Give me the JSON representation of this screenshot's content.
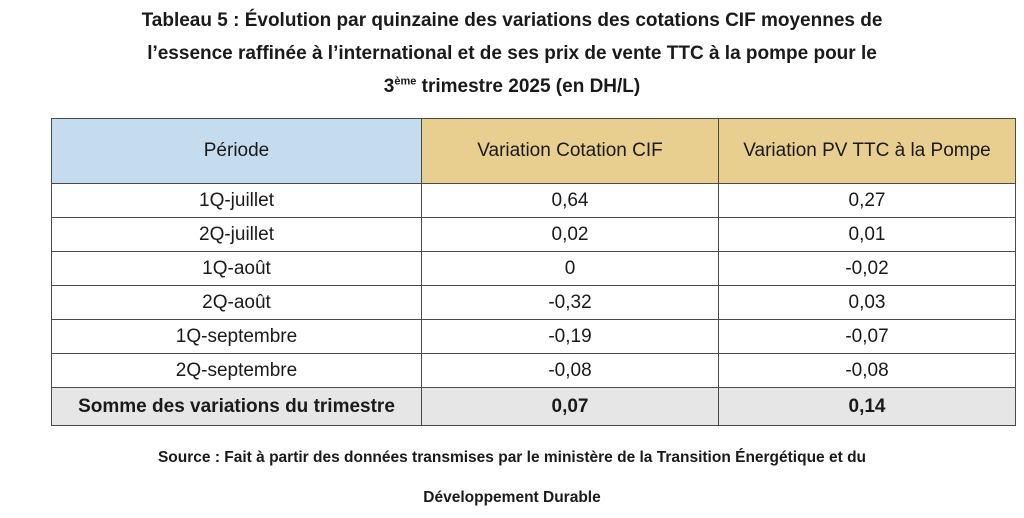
{
  "title": {
    "line1": "Tableau 5 : Évolution par quinzaine des variations des cotations CIF moyennes de",
    "line2": "l’essence raffinée à l’international et de ses prix de vente TTC à la pompe pour le",
    "line3_prefix": "3",
    "line3_sup": "ème",
    "line3_suffix": " trimestre 2025 (en DH/L)"
  },
  "table": {
    "headers": [
      "Période",
      "Variation Cotation CIF",
      "Variation PV TTC à la Pompe"
    ],
    "rows": [
      [
        "1Q-juillet",
        "0,64",
        "0,27"
      ],
      [
        "2Q-juillet",
        "0,02",
        "0,01"
      ],
      [
        "1Q-août",
        "0",
        "-0,02"
      ],
      [
        "2Q-août",
        "-0,32",
        "0,03"
      ],
      [
        "1Q-septembre",
        "-0,19",
        "-0,07"
      ],
      [
        "2Q-septembre",
        "-0,08",
        "-0,08"
      ]
    ],
    "total": [
      "Somme des variations du trimestre",
      "0,07",
      "0,14"
    ]
  },
  "source": {
    "line1": "Source : Fait à partir des données transmises par le ministère de la Transition Énergétique et du",
    "line2": "Développement Durable"
  },
  "colors": {
    "header_periode_bg": "#c5dcee",
    "header_values_bg": "#e8cf8f",
    "total_row_bg": "#e6e6e6",
    "border": "#4a4a4a"
  }
}
